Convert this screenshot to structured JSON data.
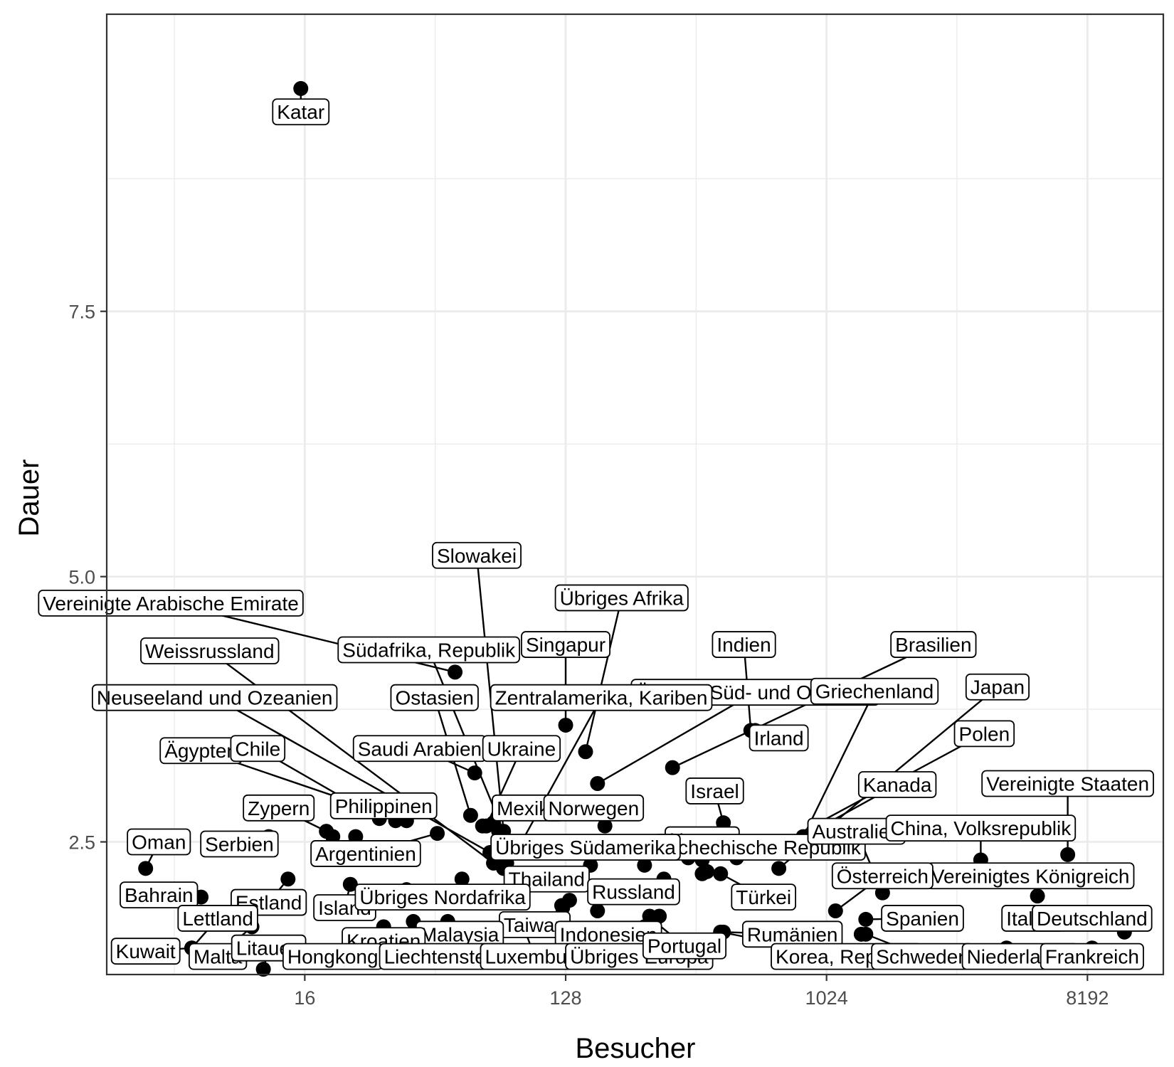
{
  "chart_data": {
    "type": "scatter",
    "xlabel": "Besucher",
    "ylabel": "Dauer",
    "x_scale": "log2",
    "xlim": [
      3.3,
      15000
    ],
    "ylim": [
      1.25,
      10.3
    ],
    "x_ticks": [
      16,
      128,
      1024,
      8192
    ],
    "x_tick_labels": [
      "16",
      "128",
      "1024",
      "8192"
    ],
    "y_ticks": [
      2.5,
      5.0,
      7.5
    ],
    "y_tick_labels": [
      "2.5",
      "5.0",
      "7.5"
    ],
    "y_minor_ticks": [
      3.75,
      6.25,
      8.75
    ],
    "grid": true,
    "colors": {
      "points": "#000000",
      "grid": "#ebebeb",
      "panel_border": "#333333",
      "label_bg": "#ffffff"
    },
    "points": [
      {
        "name": "Katar",
        "x": 15.5,
        "y": 9.6,
        "lx": 15.5,
        "ly": 9.38
      },
      {
        "name": "Slowakei",
        "x": 80,
        "y": 2.3,
        "lx": 63,
        "ly": 5.2
      },
      {
        "name": "Vereinigte Arabische Emirate",
        "x": 53,
        "y": 4.1,
        "lx": 5.5,
        "ly": 4.75
      },
      {
        "name": "Übriges Afrika",
        "x": 150,
        "y": 3.35,
        "lx": 200,
        "ly": 4.8
      },
      {
        "name": "Weissrussland",
        "x": 72,
        "y": 2.3,
        "lx": 7.5,
        "ly": 4.3
      },
      {
        "name": "Südafrika, Republik",
        "x": 78,
        "y": 2.6,
        "lx": 43,
        "ly": 4.31
      },
      {
        "name": "Singapur",
        "x": 128,
        "y": 3.6,
        "lx": 128,
        "ly": 4.36
      },
      {
        "name": "Indien",
        "x": 560,
        "y": 3.55,
        "lx": 530,
        "ly": 4.36
      },
      {
        "name": "Brasilien",
        "x": 300,
        "y": 3.2,
        "lx": 2400,
        "ly": 4.36
      },
      {
        "name": "Übriges Süd- und Ostasien",
        "x": 165,
        "y": 3.05,
        "lx": 580,
        "ly": 3.91
      },
      {
        "name": "Griechenland",
        "x": 800,
        "y": 2.4,
        "lx": 1500,
        "ly": 3.92
      },
      {
        "name": "Japan",
        "x": 700,
        "y": 2.25,
        "lx": 4000,
        "ly": 3.96
      },
      {
        "name": "Neuseeland und Ozeanien",
        "x": 70,
        "y": 2.4,
        "lx": 7.8,
        "ly": 3.86
      },
      {
        "name": "Ostasien",
        "x": 60,
        "y": 2.75,
        "lx": 45,
        "ly": 3.86
      },
      {
        "name": "Zentralamerika, Kariben",
        "x": 86,
        "y": 2.4,
        "lx": 170,
        "ly": 3.86
      },
      {
        "name": "Irland",
        "x": 580,
        "y": 3.55,
        "lx": 700,
        "ly": 3.48
      },
      {
        "name": "Polen",
        "x": 620,
        "y": 2.4,
        "lx": 3600,
        "ly": 3.52
      },
      {
        "name": "Ägypten",
        "x": 36,
        "y": 2.7,
        "lx": 7,
        "ly": 3.36
      },
      {
        "name": "Chile",
        "x": 29,
        "y": 2.72,
        "lx": 11,
        "ly": 3.38
      },
      {
        "name": "Saudi Arabien",
        "x": 62,
        "y": 3.15,
        "lx": 40,
        "ly": 3.38
      },
      {
        "name": "Ukraine",
        "x": 68,
        "y": 2.65,
        "lx": 90,
        "ly": 3.38
      },
      {
        "name": "Israel",
        "x": 450,
        "y": 2.68,
        "lx": 420,
        "ly": 2.98
      },
      {
        "name": "Kanada",
        "x": 850,
        "y": 2.55,
        "lx": 1800,
        "ly": 3.04
      },
      {
        "name": "Vereinigte Staaten",
        "x": 7000,
        "y": 2.38,
        "lx": 7000,
        "ly": 3.05
      },
      {
        "name": "Philippinen",
        "x": 33,
        "y": 2.7,
        "lx": 30,
        "ly": 2.84
      },
      {
        "name": "Zypern",
        "x": 19,
        "y": 2.6,
        "lx": 13,
        "ly": 2.82
      },
      {
        "name": "Mexiko",
        "x": 72,
        "y": 2.68,
        "lx": 95,
        "ly": 2.82
      },
      {
        "name": "Norwegen",
        "x": 175,
        "y": 2.65,
        "lx": 160,
        "ly": 2.82
      },
      {
        "name": "Ungarn",
        "x": 380,
        "y": 2.33,
        "lx": 380,
        "ly": 2.52
      },
      {
        "name": "Tschechische Republik",
        "x": 500,
        "y": 2.35,
        "lx": 600,
        "ly": 2.45
      },
      {
        "name": "Australien",
        "x": 1600,
        "y": 2.02,
        "lx": 1300,
        "ly": 2.6
      },
      {
        "name": "China, Volksrepublik",
        "x": 3500,
        "y": 2.33,
        "lx": 3500,
        "ly": 2.63
      },
      {
        "name": "Oman",
        "x": 4.5,
        "y": 2.25,
        "lx": 5,
        "ly": 2.5
      },
      {
        "name": "Serbien",
        "x": 12,
        "y": 2.55,
        "lx": 9.5,
        "ly": 2.48
      },
      {
        "name": "Argentinien",
        "x": 46,
        "y": 2.58,
        "lx": 26,
        "ly": 2.39
      },
      {
        "name": "Übriges Südamerika",
        "x": 110,
        "y": 2.43,
        "lx": 150,
        "ly": 2.45
      },
      {
        "name": "Vereinigtes Königreich",
        "x": 5500,
        "y": 1.99,
        "lx": 5200,
        "ly": 2.18
      },
      {
        "name": "Österreich",
        "x": 1100,
        "y": 1.85,
        "lx": 1600,
        "ly": 2.18
      },
      {
        "name": "Bahrain",
        "x": 7,
        "y": 1.98,
        "lx": 5,
        "ly": 2.0
      },
      {
        "name": "Thailand",
        "x": 90,
        "y": 2.15,
        "lx": 110,
        "ly": 2.15
      },
      {
        "name": "Russland",
        "x": 280,
        "y": 2.15,
        "lx": 220,
        "ly": 2.03
      },
      {
        "name": "Türkei",
        "x": 440,
        "y": 2.2,
        "lx": 620,
        "ly": 1.98
      },
      {
        "name": "Estland",
        "x": 14,
        "y": 2.15,
        "lx": 12,
        "ly": 1.93
      },
      {
        "name": "Island",
        "x": 23,
        "y": 2.1,
        "lx": 22,
        "ly": 1.88
      },
      {
        "name": "Übriges Nordafrika",
        "x": 32,
        "y": 2.0,
        "lx": 48,
        "ly": 1.98
      },
      {
        "name": "Lettland",
        "x": 6.5,
        "y": 1.5,
        "lx": 8,
        "ly": 1.78
      },
      {
        "name": "Spanien",
        "x": 1400,
        "y": 1.77,
        "lx": 2200,
        "ly": 1.78
      },
      {
        "name": "Italien",
        "x": 5200,
        "y": 1.75,
        "lx": 5300,
        "ly": 1.78
      },
      {
        "name": "Deutschland",
        "x": 11000,
        "y": 1.65,
        "lx": 8500,
        "ly": 1.78
      },
      {
        "name": "Taiwan",
        "x": 125,
        "y": 1.88,
        "lx": 100,
        "ly": 1.72
      },
      {
        "name": "Malaysia",
        "x": 38,
        "y": 1.75,
        "lx": 55,
        "ly": 1.63
      },
      {
        "name": "Rumänien",
        "x": 450,
        "y": 1.65,
        "lx": 780,
        "ly": 1.63
      },
      {
        "name": "Indonesien",
        "x": 240,
        "y": 1.7,
        "lx": 180,
        "ly": 1.63
      },
      {
        "name": "Kroatien",
        "x": 30,
        "y": 1.7,
        "lx": 30,
        "ly": 1.57
      },
      {
        "name": "Kuwait",
        "x": 6.5,
        "y": 1.5,
        "lx": 4.5,
        "ly": 1.47
      },
      {
        "name": "Malta",
        "x": 10.5,
        "y": 1.7,
        "lx": 8,
        "ly": 1.42
      },
      {
        "name": "Litauen",
        "x": 11.5,
        "y": 1.3,
        "lx": 12,
        "ly": 1.5
      },
      {
        "name": "Hongkong",
        "x": 30,
        "y": 1.55,
        "lx": 20,
        "ly": 1.42
      },
      {
        "name": "Liechtenstein",
        "x": 50,
        "y": 1.75,
        "lx": 48,
        "ly": 1.42
      },
      {
        "name": "Luxemburg",
        "x": 90,
        "y": 1.75,
        "lx": 100,
        "ly": 1.42
      },
      {
        "name": "Übriges Europa",
        "x": 150,
        "y": 1.5,
        "lx": 230,
        "ly": 1.42
      },
      {
        "name": "Portugal",
        "x": 260,
        "y": 1.75,
        "lx": 330,
        "ly": 1.52
      },
      {
        "name": "Korea, Republik",
        "x": 440,
        "y": 1.65,
        "lx": 1200,
        "ly": 1.42
      },
      {
        "name": "Schweden",
        "x": 1400,
        "y": 1.63,
        "lx": 2200,
        "ly": 1.42
      },
      {
        "name": "Niederlande",
        "x": 4300,
        "y": 1.5,
        "lx": 4800,
        "ly": 1.42
      },
      {
        "name": "Frankreich",
        "x": 8500,
        "y": 1.5,
        "lx": 8500,
        "ly": 1.42
      },
      {
        "name": "",
        "x": 20,
        "y": 2.55
      },
      {
        "name": "",
        "x": 24,
        "y": 2.55
      },
      {
        "name": "",
        "x": 36,
        "y": 2.05
      },
      {
        "name": "",
        "x": 56,
        "y": 2.15
      },
      {
        "name": "",
        "x": 66,
        "y": 2.65
      },
      {
        "name": "",
        "x": 75,
        "y": 2.6
      },
      {
        "name": "",
        "x": 78,
        "y": 2.25
      },
      {
        "name": "",
        "x": 84,
        "y": 2.5
      },
      {
        "name": "",
        "x": 100,
        "y": 2.45
      },
      {
        "name": "",
        "x": 124,
        "y": 1.9
      },
      {
        "name": "",
        "x": 132,
        "y": 1.95
      },
      {
        "name": "",
        "x": 156,
        "y": 2.28
      },
      {
        "name": "",
        "x": 165,
        "y": 1.85
      },
      {
        "name": "",
        "x": 240,
        "y": 2.28
      },
      {
        "name": "",
        "x": 250,
        "y": 1.8
      },
      {
        "name": "",
        "x": 270,
        "y": 1.8
      },
      {
        "name": "",
        "x": 290,
        "y": 2.4
      },
      {
        "name": "",
        "x": 340,
        "y": 2.35
      },
      {
        "name": "",
        "x": 380,
        "y": 2.2
      },
      {
        "name": "",
        "x": 395,
        "y": 2.22
      },
      {
        "name": "",
        "x": 420,
        "y": 2.4
      },
      {
        "name": "",
        "x": 1050,
        "y": 1.67
      },
      {
        "name": "",
        "x": 1350,
        "y": 1.63
      },
      {
        "name": "",
        "x": 150,
        "y": 1.42
      }
    ]
  }
}
